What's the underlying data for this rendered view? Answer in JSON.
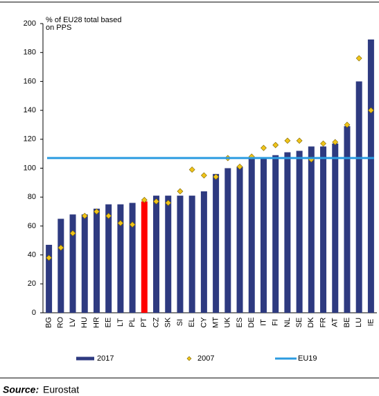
{
  "chart_data": {
    "type": "bar",
    "y_label": [
      "% of EU28  total based",
      "on PPS"
    ],
    "categories": [
      "BG",
      "RO",
      "LV",
      "HU",
      "HR",
      "EE",
      "LT",
      "PL",
      "PT",
      "CZ",
      "SK",
      "SI",
      "EL",
      "CY",
      "MT",
      "UK",
      "ES",
      "DE",
      "IT",
      "FI",
      "NL",
      "SE",
      "DK",
      "FR",
      "AT",
      "BE",
      "LU",
      "IE"
    ],
    "series": [
      {
        "name": "2017",
        "type": "bar",
        "color": "#2e3a80",
        "colors": [
          "#2e3a80",
          "#2e3a80",
          "#2e3a80",
          "#2e3a80",
          "#2e3a80",
          "#2e3a80",
          "#2e3a80",
          "#2e3a80",
          "#ff0000",
          "#2e3a80",
          "#2e3a80",
          "#2e3a80",
          "#2e3a80",
          "#2e3a80",
          "#2e3a80",
          "#2e3a80",
          "#2e3a80",
          "#2e3a80",
          "#2e3a80",
          "#2e3a80",
          "#2e3a80",
          "#2e3a80",
          "#2e3a80",
          "#2e3a80",
          "#2e3a80",
          "#2e3a80",
          "#2e3a80",
          "#2e3a80"
        ],
        "values": [
          47,
          65,
          68,
          68,
          72,
          75,
          75,
          76,
          77,
          81,
          81,
          81,
          81,
          84,
          96,
          100,
          101,
          107,
          107,
          109,
          111,
          112,
          115,
          115,
          117,
          129,
          160,
          189
        ]
      },
      {
        "name": "2007",
        "type": "scatter",
        "color": "#f0c419",
        "values": [
          38,
          45,
          55,
          67,
          70,
          67,
          62,
          61,
          78,
          77,
          76,
          84,
          99,
          95,
          94,
          107,
          101,
          108,
          114,
          116,
          119,
          119,
          106,
          117,
          118,
          130,
          176,
          140
        ]
      }
    ],
    "reference_lines": [
      {
        "name": "EU19",
        "value": 107,
        "color": "#2b9be0"
      }
    ],
    "ylim": [
      0,
      200
    ],
    "yticks": [
      0,
      20,
      40,
      60,
      80,
      100,
      120,
      140,
      160,
      180,
      200
    ]
  },
  "source": {
    "label": "Source:",
    "text": "Eurostat"
  }
}
